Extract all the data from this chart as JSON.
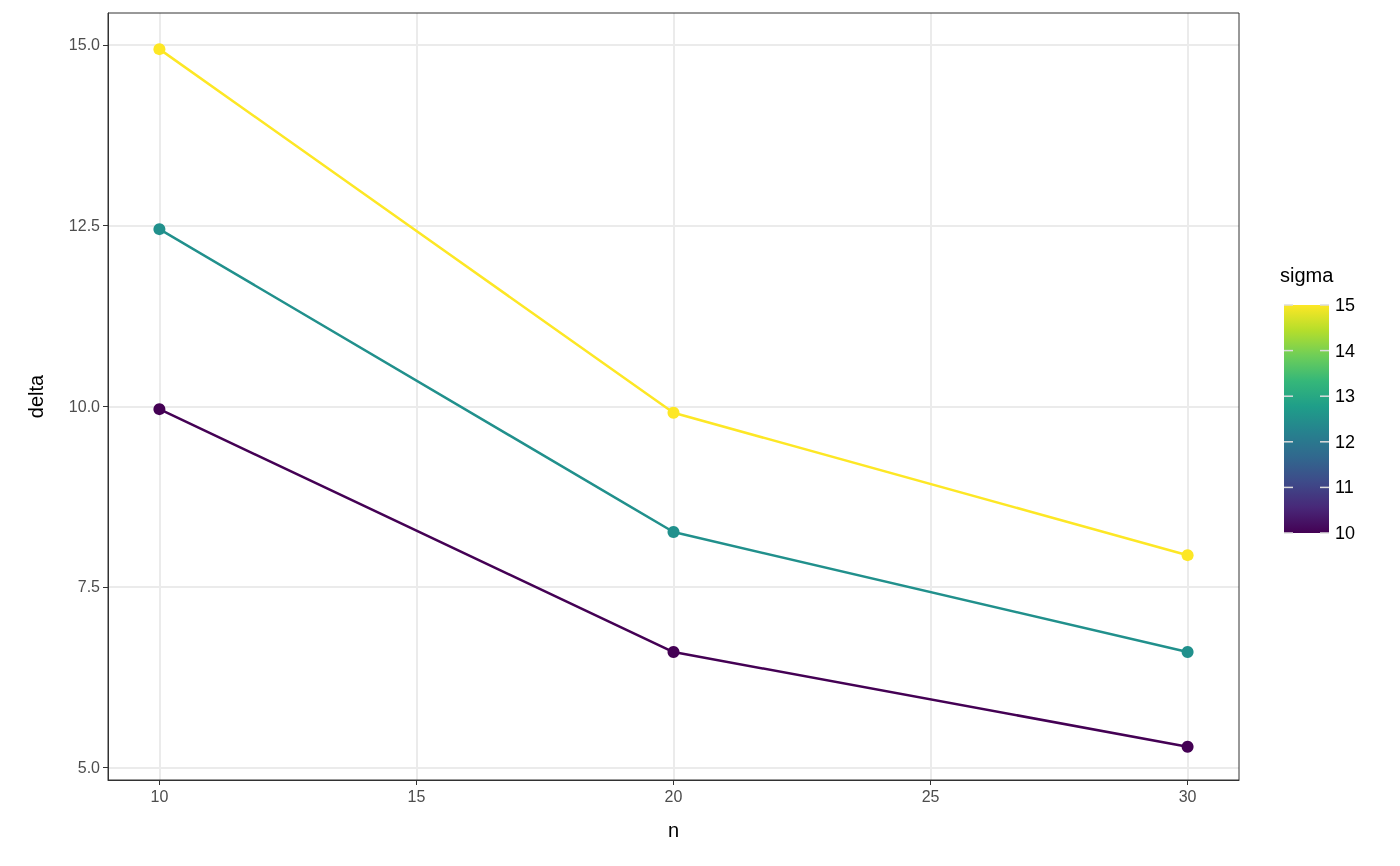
{
  "chart_data": {
    "type": "line",
    "xlabel": "n",
    "ylabel": "delta",
    "clabel": "sigma",
    "x": [
      10,
      20,
      30
    ],
    "series": [
      {
        "color": "#440154",
        "values": [
          9.96,
          6.6,
          5.29
        ]
      },
      {
        "color": "#21908c",
        "values": [
          12.45,
          8.26,
          6.6
        ]
      },
      {
        "color": "#fde725",
        "values": [
          14.94,
          9.91,
          7.94
        ]
      }
    ],
    "xlim": [
      9,
      31
    ],
    "xticks": [
      10,
      15,
      20,
      25,
      30
    ],
    "ylim": [
      4.83,
      15.44
    ],
    "yticks": [
      {
        "value": 5,
        "label": "5.0"
      },
      {
        "value": 7.5,
        "label": "7.5"
      },
      {
        "value": 10,
        "label": "10.0"
      },
      {
        "value": 12.5,
        "label": "12.5"
      },
      {
        "value": 15,
        "label": "15.0"
      }
    ],
    "clim": [
      10,
      15
    ],
    "cticks": [
      10,
      11,
      12,
      13,
      14,
      15
    ],
    "grid": true,
    "marker": "circle",
    "line_style": "solid"
  }
}
